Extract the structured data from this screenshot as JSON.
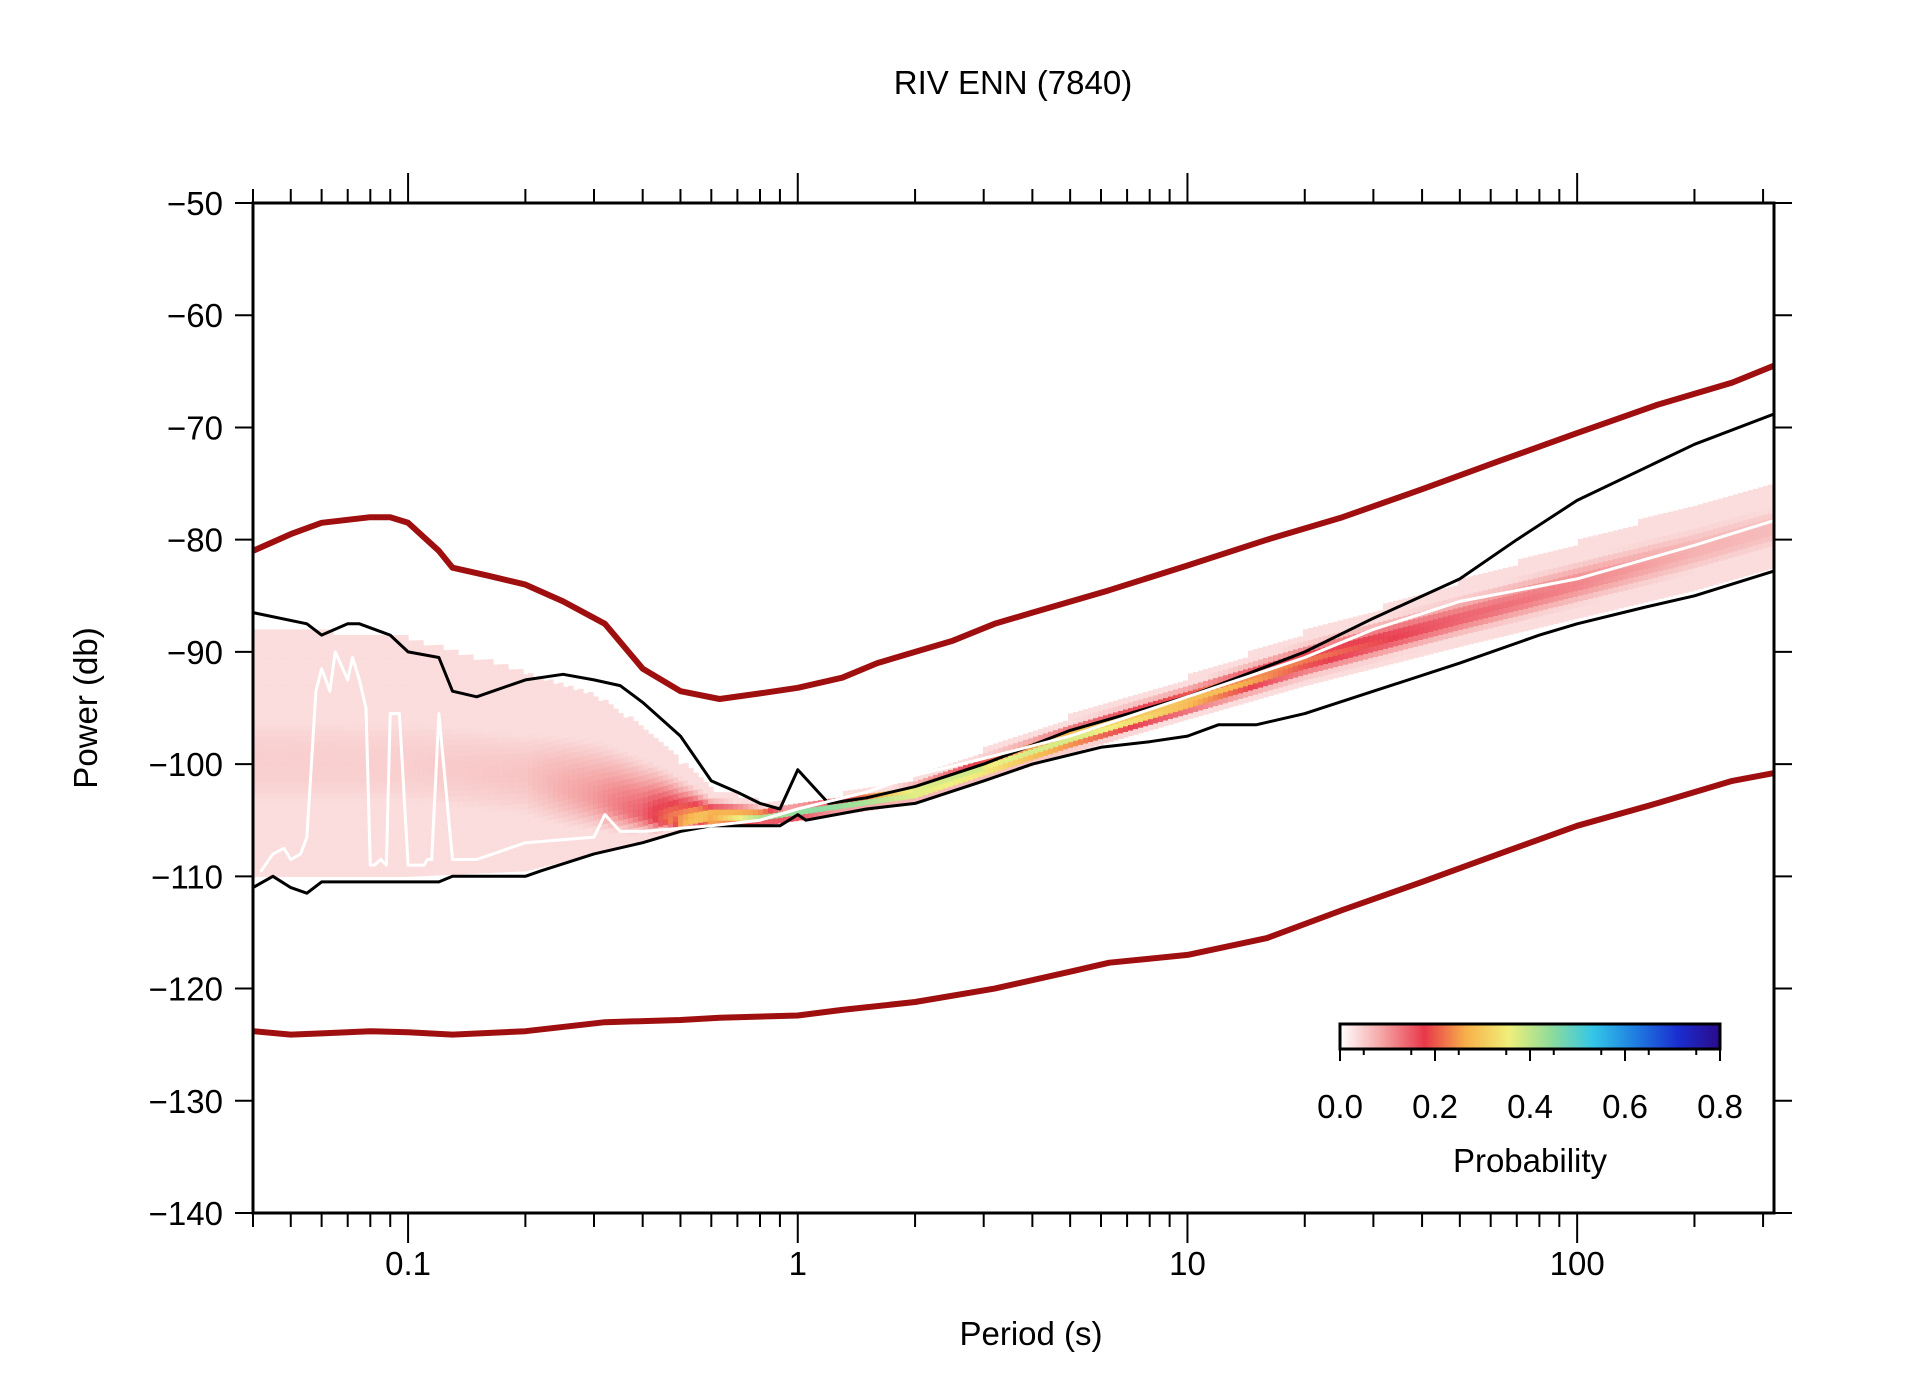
{
  "chart_data": {
    "type": "line",
    "title": "RIV ENN (7840)",
    "xlabel": "Period (s)",
    "ylabel": "Power (db)",
    "x_scale": "log",
    "xlim": [
      0.04,
      320
    ],
    "ylim": [
      -140,
      -50
    ],
    "x_ticks": [
      {
        "value": 0.1,
        "label": "0.1"
      },
      {
        "value": 1,
        "label": "1"
      },
      {
        "value": 10,
        "label": "10"
      },
      {
        "value": 100,
        "label": "100"
      }
    ],
    "y_ticks": [
      {
        "value": -50,
        "label": "−50"
      },
      {
        "value": -60,
        "label": "−60"
      },
      {
        "value": -70,
        "label": "−70"
      },
      {
        "value": -80,
        "label": "−80"
      },
      {
        "value": -90,
        "label": "−90"
      },
      {
        "value": -100,
        "label": "−100"
      },
      {
        "value": -110,
        "label": "−110"
      },
      {
        "value": -120,
        "label": "−120"
      },
      {
        "value": -130,
        "label": "−130"
      },
      {
        "value": -140,
        "label": "−140"
      }
    ],
    "series": [
      {
        "role": "nhnm-upper",
        "color": "#a00f0f",
        "x": [
          0.04,
          0.05,
          0.06,
          0.08,
          0.09,
          0.1,
          0.12,
          0.13,
          0.16,
          0.2,
          0.25,
          0.32,
          0.4,
          0.5,
          0.63,
          0.8,
          1,
          1.3,
          1.6,
          2,
          2.5,
          3.2,
          4,
          6.3,
          10,
          16,
          25,
          40,
          63,
          100,
          160,
          250,
          320
        ],
        "y": [
          -81,
          -79.5,
          -78.5,
          -78,
          -78,
          -78.5,
          -81,
          -82.5,
          -83.2,
          -84,
          -85.5,
          -87.5,
          -91.5,
          -93.5,
          -94.2,
          -93.7,
          -93.2,
          -92.3,
          -91,
          -90,
          -89,
          -87.5,
          -86.5,
          -84.5,
          -82.3,
          -80,
          -78,
          -75.5,
          -73,
          -70.5,
          -68,
          -66,
          -64.5
        ]
      },
      {
        "role": "nlnm-lower",
        "color": "#a00f0f",
        "x": [
          0.04,
          0.05,
          0.06,
          0.08,
          0.1,
          0.13,
          0.2,
          0.32,
          0.5,
          0.63,
          1,
          1.3,
          2,
          3.2,
          5,
          6.3,
          10,
          16,
          25,
          40,
          63,
          100,
          160,
          250,
          320
        ],
        "y": [
          -123.8,
          -124.1,
          -124,
          -123.8,
          -123.9,
          -124.1,
          -123.8,
          -123,
          -122.8,
          -122.6,
          -122.4,
          -121.9,
          -121.2,
          -120,
          -118.5,
          -117.7,
          -117,
          -115.5,
          -113,
          -110.5,
          -108,
          -105.5,
          -103.5,
          -101.5,
          -100.8
        ]
      },
      {
        "role": "percentile-upper",
        "color": "#000000",
        "x": [
          0.04,
          0.055,
          0.06,
          0.07,
          0.075,
          0.09,
          0.1,
          0.12,
          0.13,
          0.15,
          0.2,
          0.25,
          0.3,
          0.35,
          0.4,
          0.5,
          0.6,
          0.7,
          0.8,
          0.9,
          1,
          1.2,
          1.5,
          2,
          3,
          5,
          10,
          20,
          30,
          50,
          70,
          100,
          200,
          320
        ],
        "y": [
          -86.5,
          -87.5,
          -88.5,
          -87.5,
          -87.5,
          -88.5,
          -90,
          -90.5,
          -93.5,
          -94,
          -92.5,
          -92,
          -92.5,
          -93,
          -94.5,
          -97.5,
          -101.5,
          -102.5,
          -103.5,
          -104,
          -100.5,
          -103.5,
          -103,
          -102,
          -100,
          -97,
          -94,
          -90,
          -87,
          -83.5,
          -80,
          -76.5,
          -71.5,
          -68.8
        ]
      },
      {
        "role": "percentile-lower",
        "color": "#000000",
        "x": [
          0.04,
          0.045,
          0.05,
          0.055,
          0.06,
          0.07,
          0.1,
          0.12,
          0.13,
          0.2,
          0.22,
          0.3,
          0.4,
          0.5,
          0.6,
          0.8,
          0.9,
          1,
          1.05,
          1.5,
          2,
          3,
          4,
          6,
          8,
          10,
          12,
          15,
          20,
          30,
          50,
          80,
          100,
          150,
          200,
          320
        ],
        "y": [
          -111,
          -110,
          -111,
          -111.5,
          -110.5,
          -110.5,
          -110.5,
          -110.5,
          -110,
          -110,
          -109.5,
          -108,
          -107,
          -106,
          -105.5,
          -105.5,
          -105.5,
          -104.5,
          -105,
          -104,
          -103.5,
          -101.5,
          -100,
          -98.5,
          -98,
          -97.5,
          -96.5,
          -96.5,
          -95.5,
          -93.5,
          -91,
          -88.5,
          -87.5,
          -86,
          -85,
          -82.8
        ]
      },
      {
        "role": "mode",
        "color": "#ffffff",
        "x": [
          0.042,
          0.045,
          0.048,
          0.05,
          0.053,
          0.055,
          0.058,
          0.06,
          0.063,
          0.065,
          0.07,
          0.072,
          0.075,
          0.078,
          0.08,
          0.082,
          0.085,
          0.088,
          0.09,
          0.095,
          0.1,
          0.105,
          0.11,
          0.112,
          0.115,
          0.12,
          0.13,
          0.15,
          0.2,
          0.3,
          0.32,
          0.35,
          0.4,
          0.6,
          0.8,
          1,
          1.5,
          2,
          3,
          5,
          10,
          20,
          30,
          50,
          100,
          200,
          320
        ],
        "y": [
          -109.5,
          -108,
          -107.5,
          -108.5,
          -108,
          -106.5,
          -93.5,
          -91.5,
          -93.5,
          -90,
          -92.5,
          -90.5,
          -92.5,
          -95,
          -109,
          -109,
          -108.5,
          -109,
          -95.5,
          -95.5,
          -109,
          -109,
          -109,
          -108.5,
          -108.5,
          -95.5,
          -108.5,
          -108.5,
          -107,
          -106.5,
          -104.5,
          -106,
          -106,
          -105.5,
          -105,
          -104,
          -102.5,
          -101,
          -99.5,
          -97.5,
          -94,
          -90.5,
          -88,
          -85.5,
          -83.5,
          -80.5,
          -78.3
        ]
      }
    ],
    "density_band": {
      "description": "probability density of PSD values",
      "x": [
        0.04,
        0.1,
        0.2,
        0.3,
        0.4,
        0.5,
        0.6,
        0.8,
        1,
        2,
        3,
        5,
        10,
        20,
        50,
        100,
        200,
        320
      ],
      "y_top": [
        -88,
        -89,
        -92,
        -94,
        -97,
        -100,
        -102.5,
        -103.5,
        -103.8,
        -101.5,
        -99,
        -96,
        -92.5,
        -88.5,
        -84,
        -80.5,
        -77,
        -75
      ],
      "y_bottom": [
        -110,
        -110,
        -109.5,
        -108,
        -107,
        -106,
        -105.5,
        -105.5,
        -105,
        -103.5,
        -101.5,
        -99,
        -96,
        -93,
        -89.5,
        -87,
        -84.5,
        -82.5
      ],
      "y_peak": [
        -100,
        -100,
        -101,
        -103,
        -104.5,
        -105.2,
        -105,
        -104.8,
        -104.3,
        -102.5,
        -100.5,
        -97.8,
        -94.5,
        -90.8,
        -87,
        -84,
        -81,
        -79
      ],
      "peak_probability": [
        0.05,
        0.05,
        0.06,
        0.1,
        0.15,
        0.25,
        0.35,
        0.42,
        0.45,
        0.45,
        0.42,
        0.38,
        0.3,
        0.22,
        0.15,
        0.12,
        0.08,
        0.07
      ]
    },
    "colorbar": {
      "label": "Probability",
      "min": 0.0,
      "max": 0.8,
      "ticks": [
        "0.0",
        "0.2",
        "0.4",
        "0.6",
        "0.8"
      ],
      "colors": [
        "#ffffff",
        "#f4a4a4",
        "#e8384a",
        "#f7b24a",
        "#f0ef7a",
        "#8fdc9a",
        "#33c6e8",
        "#1f7de0",
        "#1a2ed0",
        "#2a0a8a"
      ]
    },
    "legend": "none",
    "grid": false
  }
}
